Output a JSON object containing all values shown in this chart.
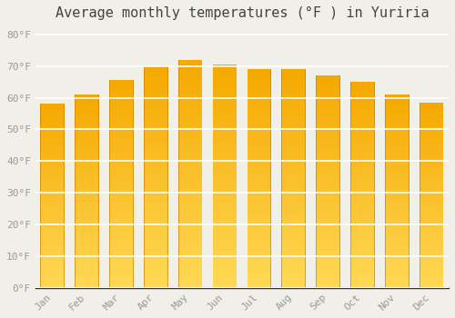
{
  "title": "Average monthly temperatures (°F ) in Yuriria",
  "months": [
    "Jan",
    "Feb",
    "Mar",
    "Apr",
    "May",
    "Jun",
    "Jul",
    "Aug",
    "Sep",
    "Oct",
    "Nov",
    "Dec"
  ],
  "values": [
    58.0,
    61.0,
    65.5,
    70.0,
    72.0,
    70.5,
    69.0,
    69.0,
    67.0,
    65.0,
    61.0,
    58.5
  ],
  "bar_color_top": "#F5A800",
  "bar_color_mid": "#FFC830",
  "bar_color_bottom": "#FFD855",
  "bar_edge_color": "#C87800",
  "background_color": "#F0EFE8",
  "grid_color": "#FFFFFF",
  "yticks": [
    0,
    10,
    20,
    30,
    40,
    50,
    60,
    70,
    80
  ],
  "ylim": [
    0,
    83
  ],
  "title_fontsize": 11,
  "tick_fontsize": 8,
  "font_family": "monospace",
  "tick_color": "#999999",
  "title_color": "#444444",
  "bar_width": 0.7
}
